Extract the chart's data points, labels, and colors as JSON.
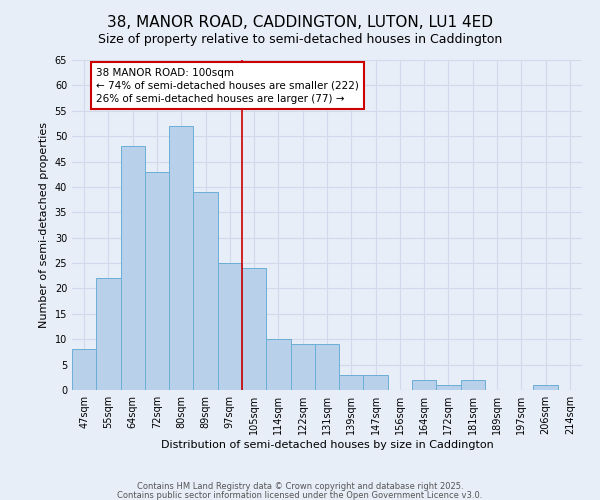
{
  "title": "38, MANOR ROAD, CADDINGTON, LUTON, LU1 4ED",
  "subtitle": "Size of property relative to semi-detached houses in Caddington",
  "xlabel": "Distribution of semi-detached houses by size in Caddington",
  "ylabel": "Number of semi-detached properties",
  "categories": [
    "47sqm",
    "55sqm",
    "64sqm",
    "72sqm",
    "80sqm",
    "89sqm",
    "97sqm",
    "105sqm",
    "114sqm",
    "122sqm",
    "131sqm",
    "139sqm",
    "147sqm",
    "156sqm",
    "164sqm",
    "172sqm",
    "181sqm",
    "189sqm",
    "197sqm",
    "206sqm",
    "214sqm"
  ],
  "values": [
    8,
    22,
    48,
    43,
    52,
    39,
    25,
    24,
    10,
    9,
    9,
    3,
    3,
    0,
    2,
    1,
    2,
    0,
    0,
    1,
    0
  ],
  "bar_color": "#b8d0ea",
  "bar_edge_color": "#6aaed6",
  "vline_x": 6.5,
  "vline_color": "#cc0000",
  "annotation_text": "38 MANOR ROAD: 100sqm\n← 74% of semi-detached houses are smaller (222)\n26% of semi-detached houses are larger (77) →",
  "annotation_box_color": "#ffffff",
  "annotation_box_edge": "#cc0000",
  "ylim": [
    0,
    65
  ],
  "yticks": [
    0,
    5,
    10,
    15,
    20,
    25,
    30,
    35,
    40,
    45,
    50,
    55,
    60,
    65
  ],
  "footer1": "Contains HM Land Registry data © Crown copyright and database right 2025.",
  "footer2": "Contains public sector information licensed under the Open Government Licence v3.0.",
  "bg_color": "#e8eef8",
  "grid_color": "#d0daea",
  "title_fontsize": 11,
  "subtitle_fontsize": 9,
  "axis_label_fontsize": 8,
  "tick_fontsize": 7,
  "annotation_fontsize": 7.5,
  "footer_fontsize": 6
}
